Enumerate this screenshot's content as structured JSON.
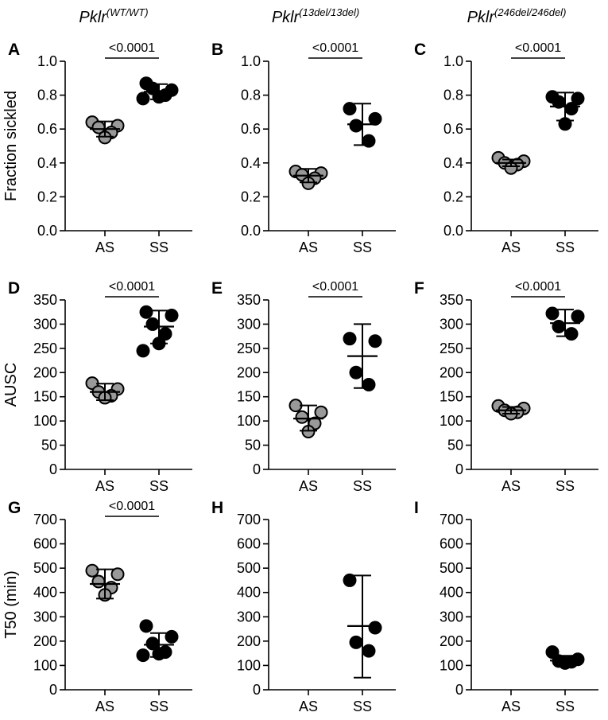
{
  "column_headers": [
    {
      "gene": "Pklr",
      "genotype": "(WT/WT)"
    },
    {
      "gene": "Pklr",
      "genotype": "(13del/13del)"
    },
    {
      "gene": "Pklr",
      "genotype": "(246del/246del)"
    }
  ],
  "colors": {
    "AS_fill": "#999999",
    "SS_fill": "#000000",
    "axis": "#000000",
    "marker_edge": "#000000"
  },
  "chart_data": [
    {
      "type": "scatter",
      "panel_label": "A",
      "column": 0,
      "row": 0,
      "ylabel": "Fraction sickled",
      "ylim": [
        0,
        1.0
      ],
      "yticks": [
        0.0,
        0.2,
        0.4,
        0.6,
        0.8,
        1.0
      ],
      "ytick_labels": [
        "0.0",
        "0.2",
        "0.4",
        "0.6",
        "0.8",
        "1.0"
      ],
      "categories": [
        "AS",
        "SS"
      ],
      "series": [
        {
          "values": [
            0.64,
            0.62,
            0.61,
            0.58,
            0.55
          ],
          "mean": 0.6,
          "sd_upper": 0.645,
          "sd_lower": 0.555
        },
        {
          "values": [
            0.87,
            0.83,
            0.84,
            0.8,
            0.79,
            0.78
          ],
          "mean": 0.82,
          "sd_upper": 0.865,
          "sd_lower": 0.775
        }
      ],
      "significance": "<0.0001"
    },
    {
      "type": "scatter",
      "panel_label": "B",
      "column": 1,
      "row": 0,
      "ylabel": "",
      "ylim": [
        0,
        1.0
      ],
      "yticks": [
        0.0,
        0.2,
        0.4,
        0.6,
        0.8,
        1.0
      ],
      "ytick_labels": [
        "0.0",
        "0.2",
        "0.4",
        "0.6",
        "0.8",
        "1.0"
      ],
      "categories": [
        "AS",
        "SS"
      ],
      "series": [
        {
          "values": [
            0.35,
            0.34,
            0.33,
            0.31,
            0.28
          ],
          "mean": 0.325,
          "sd_upper": 0.365,
          "sd_lower": 0.285
        },
        {
          "values": [
            0.72,
            0.66,
            0.62,
            0.53
          ],
          "mean": 0.628,
          "sd_upper": 0.75,
          "sd_lower": 0.505
        }
      ],
      "significance": "<0.0001"
    },
    {
      "type": "scatter",
      "panel_label": "C",
      "column": 2,
      "row": 0,
      "ylabel": "",
      "ylim": [
        0,
        1.0
      ],
      "yticks": [
        0.0,
        0.2,
        0.4,
        0.6,
        0.8,
        1.0
      ],
      "ytick_labels": [
        "0.0",
        "0.2",
        "0.4",
        "0.6",
        "0.8",
        "1.0"
      ],
      "categories": [
        "AS",
        "SS"
      ],
      "series": [
        {
          "values": [
            0.43,
            0.41,
            0.4,
            0.39,
            0.37
          ],
          "mean": 0.4,
          "sd_upper": 0.42,
          "sd_lower": 0.38
        },
        {
          "values": [
            0.79,
            0.78,
            0.76,
            0.72,
            0.63
          ],
          "mean": 0.733,
          "sd_upper": 0.815,
          "sd_lower": 0.65
        }
      ],
      "significance": "<0.0001"
    },
    {
      "type": "scatter",
      "panel_label": "D",
      "column": 0,
      "row": 1,
      "ylabel": "AUSC",
      "ylim": [
        0,
        350
      ],
      "yticks": [
        0,
        50,
        100,
        150,
        200,
        250,
        300,
        350
      ],
      "ytick_labels": [
        "0",
        "50",
        "100",
        "150",
        "200",
        "250",
        "300",
        "350"
      ],
      "categories": [
        "AS",
        "SS"
      ],
      "series": [
        {
          "values": [
            178,
            166,
            160,
            152,
            148
          ],
          "mean": 160,
          "sd_upper": 177,
          "sd_lower": 143
        },
        {
          "values": [
            325,
            318,
            300,
            280,
            260,
            245
          ],
          "mean": 295,
          "sd_upper": 328,
          "sd_lower": 260
        }
      ],
      "significance": "<0.0001"
    },
    {
      "type": "scatter",
      "panel_label": "E",
      "column": 1,
      "row": 1,
      "ylabel": "",
      "ylim": [
        0,
        350
      ],
      "yticks": [
        0,
        50,
        100,
        150,
        200,
        250,
        300,
        350
      ],
      "ytick_labels": [
        "0",
        "50",
        "100",
        "150",
        "200",
        "250",
        "300",
        "350"
      ],
      "categories": [
        "AS",
        "SS"
      ],
      "series": [
        {
          "values": [
            132,
            118,
            108,
            95,
            78
          ],
          "mean": 105,
          "sd_upper": 132,
          "sd_lower": 80
        },
        {
          "values": [
            270,
            265,
            200,
            175
          ],
          "mean": 234,
          "sd_upper": 300,
          "sd_lower": 168
        }
      ],
      "significance": "<0.0001"
    },
    {
      "type": "scatter",
      "panel_label": "F",
      "column": 2,
      "row": 1,
      "ylabel": "",
      "ylim": [
        0,
        350
      ],
      "yticks": [
        0,
        50,
        100,
        150,
        200,
        250,
        300,
        350
      ],
      "ytick_labels": [
        "0",
        "50",
        "100",
        "150",
        "200",
        "250",
        "300",
        "350"
      ],
      "categories": [
        "AS",
        "SS"
      ],
      "series": [
        {
          "values": [
            131,
            126,
            122,
            118,
            115
          ],
          "mean": 122,
          "sd_upper": 129,
          "sd_lower": 115
        },
        {
          "values": [
            322,
            316,
            295,
            280
          ],
          "mean": 302,
          "sd_upper": 330,
          "sd_lower": 275
        }
      ],
      "significance": "<0.0001"
    },
    {
      "type": "scatter",
      "panel_label": "G",
      "column": 0,
      "row": 2,
      "ylabel": "T50 (min)",
      "ylim": [
        0,
        700
      ],
      "yticks": [
        0,
        100,
        200,
        300,
        400,
        500,
        600,
        700
      ],
      "ytick_labels": [
        "0",
        "100",
        "200",
        "300",
        "400",
        "500",
        "600",
        "700"
      ],
      "categories": [
        "AS",
        "SS"
      ],
      "series": [
        {
          "values": [
            490,
            475,
            445,
            420,
            390
          ],
          "mean": 435,
          "sd_upper": 495,
          "sd_lower": 375
        },
        {
          "values": [
            262,
            218,
            190,
            155,
            148,
            142
          ],
          "mean": 185,
          "sd_upper": 233,
          "sd_lower": 135
        }
      ],
      "significance": "<0.0001"
    },
    {
      "type": "scatter",
      "panel_label": "H",
      "column": 1,
      "row": 2,
      "ylabel": "",
      "ylim": [
        0,
        700
      ],
      "yticks": [
        0,
        100,
        200,
        300,
        400,
        500,
        600,
        700
      ],
      "ytick_labels": [
        "0",
        "100",
        "200",
        "300",
        "400",
        "500",
        "600",
        "700"
      ],
      "categories": [
        "AS",
        "SS"
      ],
      "series": [
        {
          "values": [],
          "mean": null,
          "sd_upper": null,
          "sd_lower": null
        },
        {
          "values": [
            450,
            255,
            195,
            160
          ],
          "mean": 262,
          "sd_upper": 470,
          "sd_lower": 50
        }
      ],
      "significance": ""
    },
    {
      "type": "scatter",
      "panel_label": "I",
      "column": 2,
      "row": 2,
      "ylabel": "",
      "ylim": [
        0,
        700
      ],
      "yticks": [
        0,
        100,
        200,
        300,
        400,
        500,
        600,
        700
      ],
      "ytick_labels": [
        "0",
        "100",
        "200",
        "300",
        "400",
        "500",
        "600",
        "700"
      ],
      "categories": [
        "AS",
        "SS"
      ],
      "series": [
        {
          "values": [],
          "mean": null,
          "sd_upper": null,
          "sd_lower": null
        },
        {
          "values": [
            155,
            125,
            118,
            115,
            110
          ],
          "mean": 120,
          "sd_upper": 140,
          "sd_lower": 105
        }
      ],
      "significance": ""
    }
  ]
}
